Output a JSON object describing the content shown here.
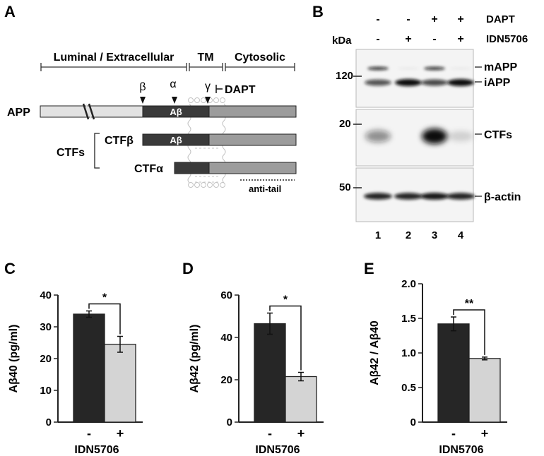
{
  "panels": {
    "A": {
      "letter": "A",
      "regions": {
        "luminal": "Luminal / Extracellular",
        "tm": "TM",
        "cytosolic": "Cytosolic"
      },
      "sites": {
        "beta": "β",
        "alpha": "α",
        "gamma": "γ"
      },
      "inhibitor": "DAPT",
      "proteins": {
        "app": "APP",
        "ctfs": "CTFs",
        "ctf_beta": "CTFβ",
        "ctf_alpha": "CTFα",
        "abeta": "Aβ"
      },
      "antibody": "anti-tail"
    },
    "B": {
      "letter": "B",
      "kda_label": "kDa",
      "row_labels": {
        "dapt": "DAPT",
        "idn": "IDN5706"
      },
      "dapt_signs": [
        "-",
        "-",
        "+",
        "+"
      ],
      "idn_signs": [
        "-",
        "+",
        "-",
        "+"
      ],
      "markers": [
        "120",
        "20",
        "50"
      ],
      "band_labels": {
        "mapp": "mAPP",
        "iapp": "iAPP",
        "ctfs": "CTFs",
        "actin": "β-actin"
      },
      "lanes": [
        "1",
        "2",
        "3",
        "4"
      ],
      "band_intensity": {
        "mapp": [
          0.85,
          0.05,
          0.85,
          0.05
        ],
        "iapp": [
          0.7,
          1.0,
          0.75,
          1.0
        ],
        "ctfs": [
          0.45,
          0.0,
          1.0,
          0.15
        ],
        "actin": [
          0.9,
          0.9,
          0.95,
          0.9
        ]
      }
    }
  },
  "chart_data": [
    {
      "panel": "C",
      "type": "bar",
      "categories": [
        "-",
        "+"
      ],
      "values": [
        34,
        24.5
      ],
      "errors": [
        1,
        2.5
      ],
      "ylabel": "Aβ40 (pg/ml)",
      "xlabel": "IDN5706",
      "ylim": [
        0,
        40
      ],
      "yticks": [
        "0",
        "10",
        "20",
        "30",
        "40"
      ],
      "significance": "*",
      "colors": [
        "#262626",
        "#d4d4d4"
      ]
    },
    {
      "panel": "D",
      "type": "bar",
      "categories": [
        "-",
        "+"
      ],
      "values": [
        46.5,
        21.5
      ],
      "errors": [
        5,
        2
      ],
      "ylabel": "Aβ42 (pg/ml)",
      "xlabel": "IDN5706",
      "ylim": [
        0,
        60
      ],
      "yticks": [
        "0",
        "20",
        "40",
        "60"
      ],
      "significance": "*",
      "colors": [
        "#262626",
        "#d4d4d4"
      ]
    },
    {
      "panel": "E",
      "type": "bar",
      "categories": [
        "-",
        "+"
      ],
      "values": [
        1.42,
        0.92
      ],
      "errors": [
        0.1,
        0.02
      ],
      "ylabel": "Aβ42 / Aβ40",
      "xlabel": "IDN5706",
      "ylim": [
        0,
        2
      ],
      "yticks": [
        "0",
        "0.5",
        "1.0",
        "1.5",
        "2.0"
      ],
      "significance": "**",
      "colors": [
        "#262626",
        "#d4d4d4"
      ]
    }
  ]
}
